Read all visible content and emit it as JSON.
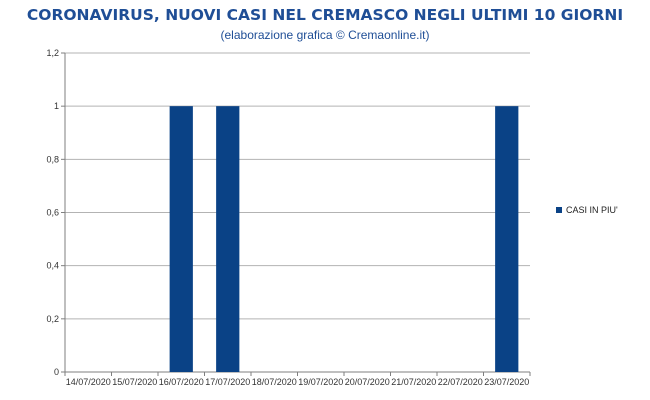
{
  "header": {
    "title": "CORONAVIRUS, NUOVI CASI NEL CREMASCO NEGLI ULTIMI 10 GIORNI",
    "subtitle": "(elaborazione grafica © Cremaonline.it)"
  },
  "colors": {
    "title": "#1f4e96",
    "bar": "#0a4286",
    "grid": "#b3b3b3",
    "axis": "#7f7f7f"
  },
  "chart_data": {
    "type": "bar",
    "categories": [
      "14/07/2020",
      "15/07/2020",
      "16/07/2020",
      "17/07/2020",
      "18/07/2020",
      "19/07/2020",
      "20/07/2020",
      "21/07/2020",
      "22/07/2020",
      "23/07/2020"
    ],
    "series": [
      {
        "name": "CASI IN PIU'",
        "values": [
          0,
          0,
          1,
          1,
          0,
          0,
          0,
          0,
          0,
          1
        ]
      }
    ],
    "ylim": [
      0,
      1.2
    ],
    "yticks": [
      "0",
      "0,2",
      "0,4",
      "0,6",
      "0,8",
      "1",
      "1,2"
    ],
    "ytick_values": [
      0,
      0.2,
      0.4,
      0.6,
      0.8,
      1,
      1.2
    ],
    "grid": true,
    "legend": "right"
  }
}
